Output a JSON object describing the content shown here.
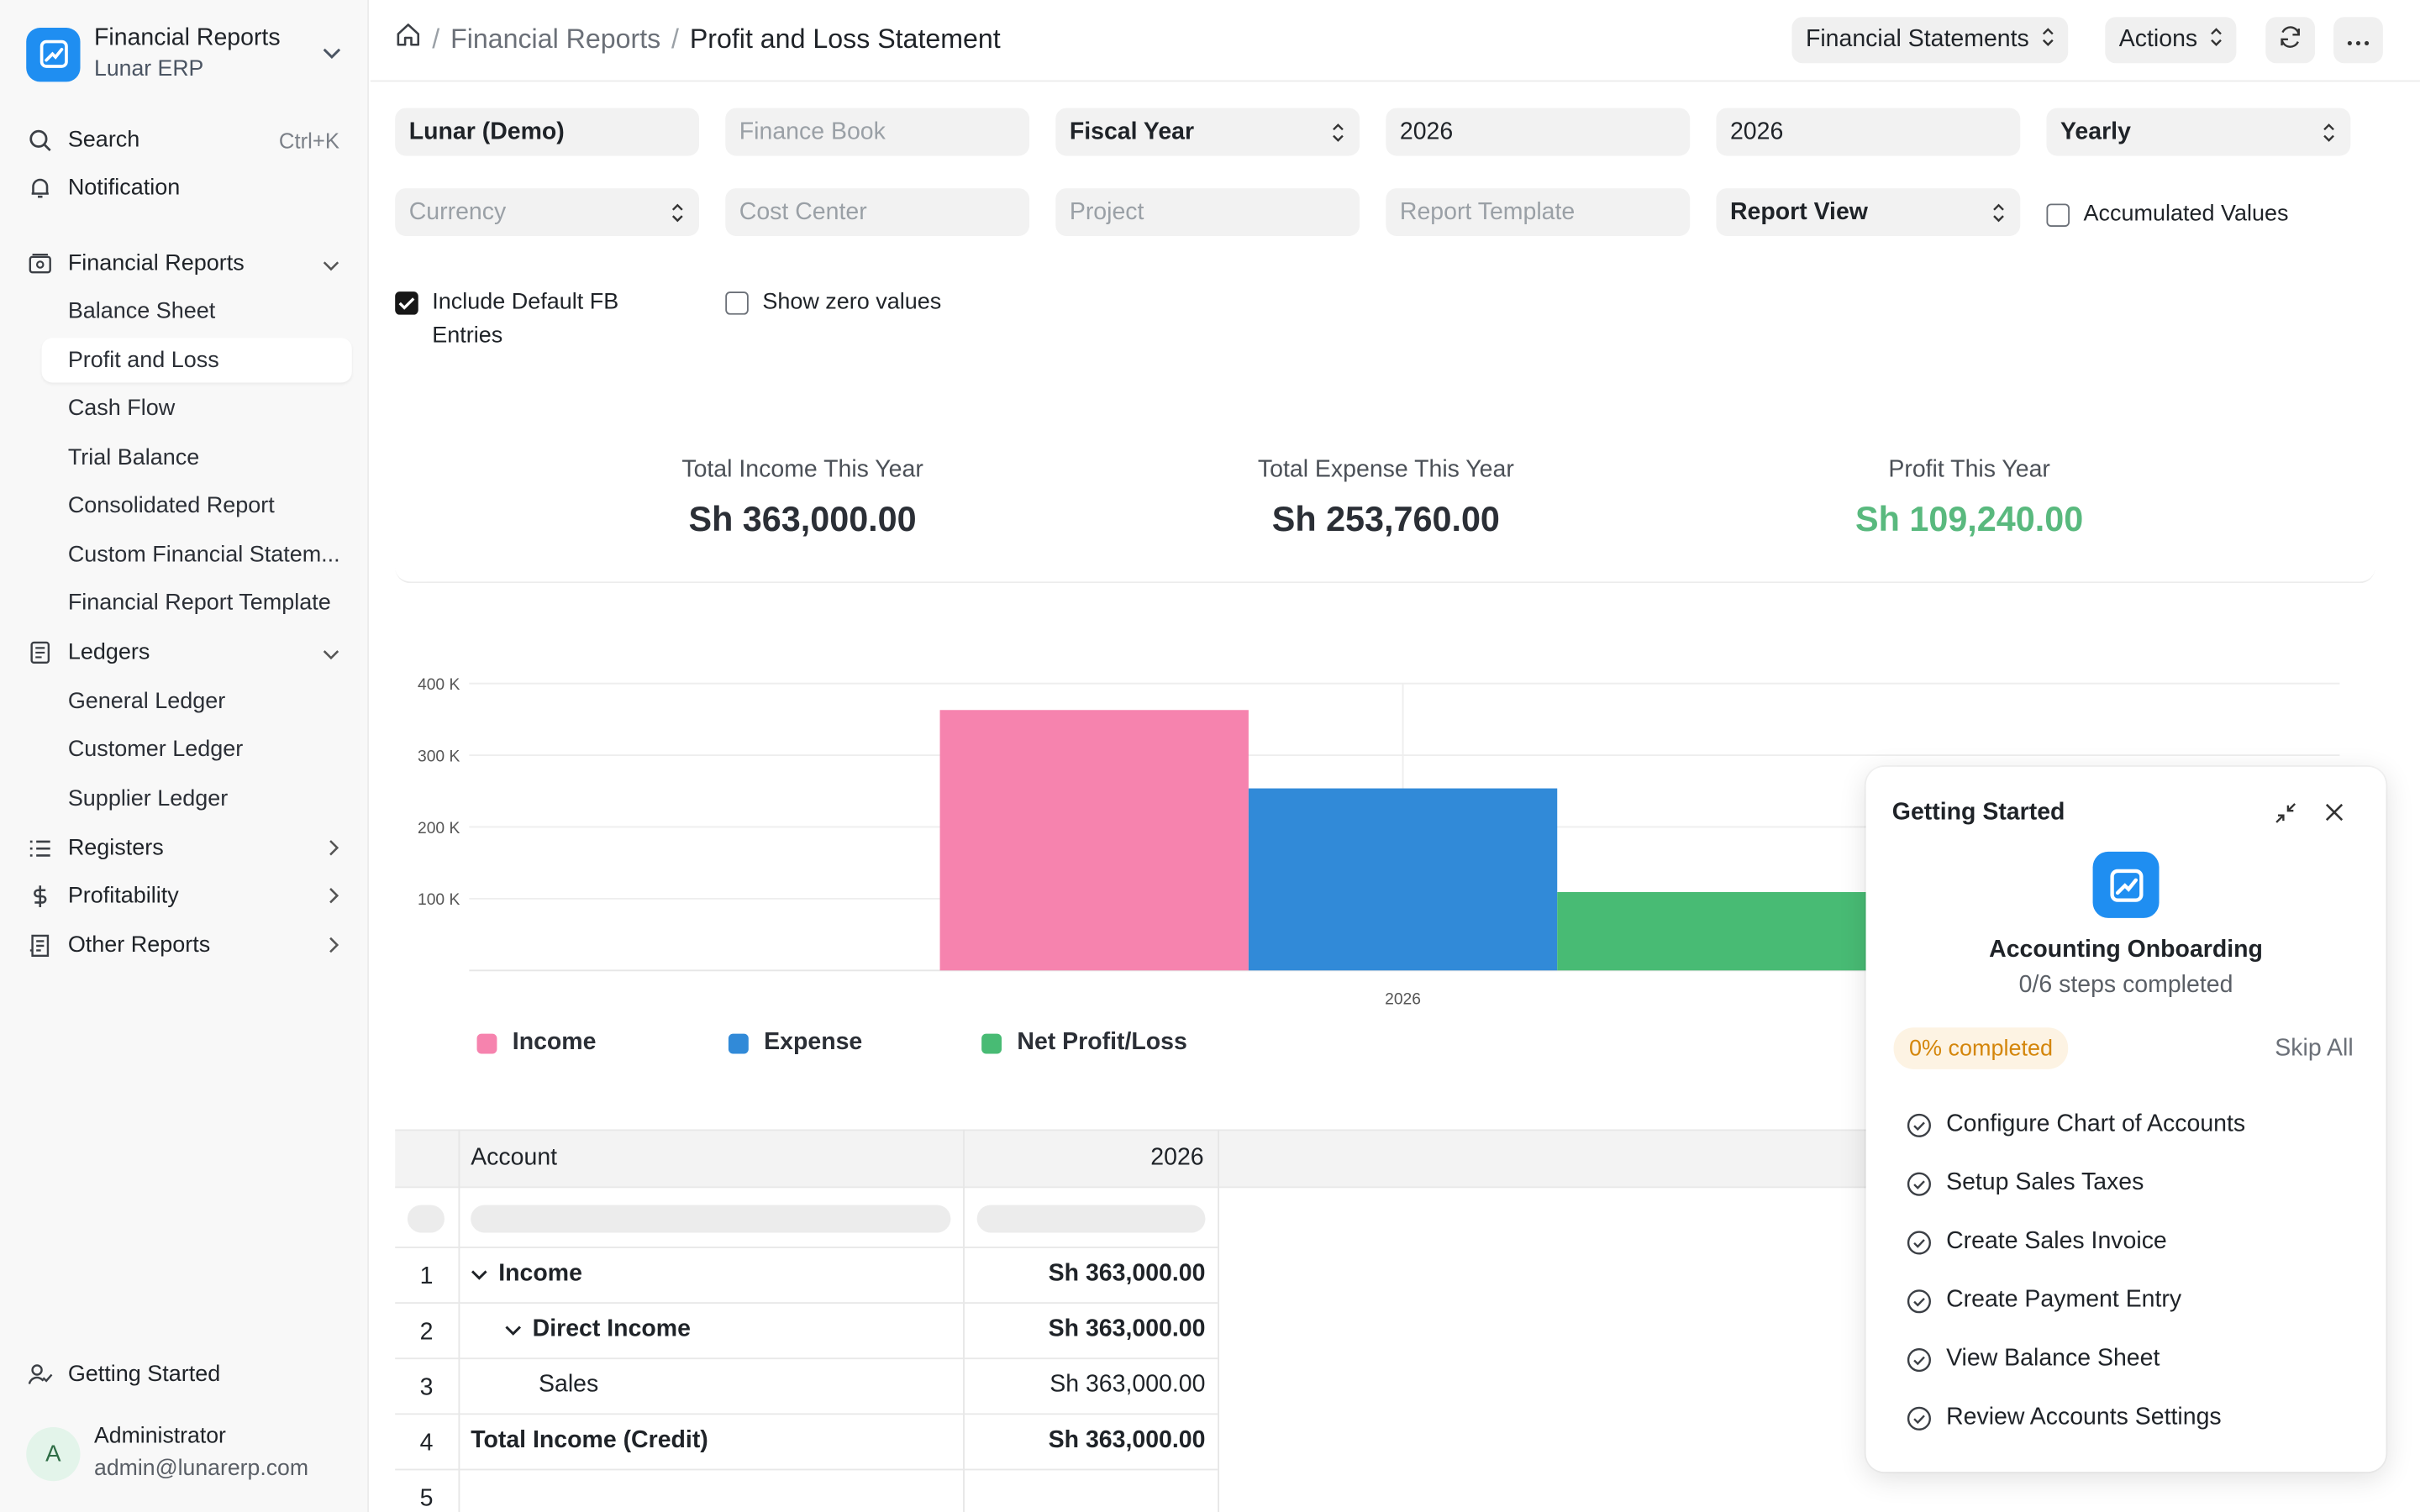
{
  "brand": {
    "title": "Financial Reports",
    "subtitle": "Lunar ERP"
  },
  "sidebar": {
    "search_label": "Search",
    "search_shortcut": "Ctrl+K",
    "notification_label": "Notification",
    "groups": [
      {
        "label": "Financial Reports",
        "icon": "wallet-icon",
        "expanded": true,
        "items": [
          "Balance Sheet",
          "Profit and Loss",
          "Cash Flow",
          "Trial Balance",
          "Consolidated Report",
          "Custom Financial Statem...",
          "Financial Report Template"
        ]
      },
      {
        "label": "Ledgers",
        "icon": "ledger-icon",
        "expanded": true,
        "items": [
          "General Ledger",
          "Customer Ledger",
          "Supplier Ledger"
        ]
      },
      {
        "label": "Registers",
        "icon": "list-icon",
        "expanded": false
      },
      {
        "label": "Profitability",
        "icon": "dollar-icon",
        "expanded": false
      },
      {
        "label": "Other Reports",
        "icon": "receipt-icon",
        "expanded": false
      }
    ],
    "active_item": "Profit and Loss",
    "getting_started_label": "Getting Started",
    "user": {
      "initial": "A",
      "name": "Administrator",
      "email": "admin@lunarerp.com"
    }
  },
  "header": {
    "breadcrumb": [
      "Financial Reports",
      "Profit and Loss Statement"
    ],
    "statements_button": "Financial Statements",
    "actions_button": "Actions"
  },
  "filters": {
    "company": "Lunar (Demo)",
    "finance_book_placeholder": "Finance Book",
    "period_basis": "Fiscal Year",
    "from_year": "2026",
    "to_year": "2026",
    "periodicity": "Yearly",
    "currency_placeholder": "Currency",
    "cost_center_placeholder": "Cost Center",
    "project_placeholder": "Project",
    "report_template_placeholder": "Report Template",
    "report_view": "Report View",
    "accumulated_values_label": "Accumulated Values",
    "accumulated_values_checked": false,
    "include_default_fb_label_1": "Include Default FB",
    "include_default_fb_label_2": "Entries",
    "include_default_fb_checked": true,
    "show_zero_values_label": "Show zero values",
    "show_zero_values_checked": false
  },
  "summary": {
    "income_label": "Total Income This Year",
    "income_value": "Sh 363,000.00",
    "expense_label": "Total Expense This Year",
    "expense_value": "Sh 253,760.00",
    "profit_label": "Profit This Year",
    "profit_value": "Sh 109,240.00"
  },
  "chart_data": {
    "type": "bar",
    "categories": [
      "2026"
    ],
    "series": [
      {
        "name": "Income",
        "values": [
          363000
        ],
        "color": "#f683ae"
      },
      {
        "name": "Expense",
        "values": [
          253760
        ],
        "color": "#318ad8"
      },
      {
        "name": "Net Profit/Loss",
        "values": [
          109240
        ],
        "color": "#48bb74"
      }
    ],
    "yticks": [
      100000,
      200000,
      300000,
      400000
    ],
    "ytick_labels": [
      "100 K",
      "200 K",
      "300 K",
      "400 K"
    ],
    "ylim": [
      0,
      400000
    ],
    "title": "",
    "xlabel": "",
    "ylabel": "",
    "legend": "bottom-left"
  },
  "table": {
    "headers": {
      "account": "Account",
      "year": "2026"
    },
    "rows": [
      {
        "num": "1",
        "account": "Income",
        "value": "Sh 363,000.00",
        "bold": true,
        "indent": 0,
        "toggle": true
      },
      {
        "num": "2",
        "account": "Direct Income",
        "value": "Sh 363,000.00",
        "bold": true,
        "indent": 1,
        "toggle": true
      },
      {
        "num": "3",
        "account": "Sales",
        "value": "Sh 363,000.00",
        "bold": false,
        "indent": 2,
        "toggle": false
      },
      {
        "num": "4",
        "account": "Total Income (Credit)",
        "value": "Sh 363,000.00",
        "bold": true,
        "indent": 0,
        "toggle": false
      },
      {
        "num": "5",
        "account": "",
        "value": "",
        "bold": false,
        "indent": 0,
        "toggle": false
      }
    ]
  },
  "onboarding": {
    "title": "Getting Started",
    "heading": "Accounting Onboarding",
    "progress_text": "0/6 steps completed",
    "badge": "0% completed",
    "skip_label": "Skip All",
    "steps": [
      "Configure Chart of Accounts",
      "Setup Sales Taxes",
      "Create Sales Invoice",
      "Create Payment Entry",
      "View Balance Sheet",
      "Review Accounts Settings"
    ]
  }
}
